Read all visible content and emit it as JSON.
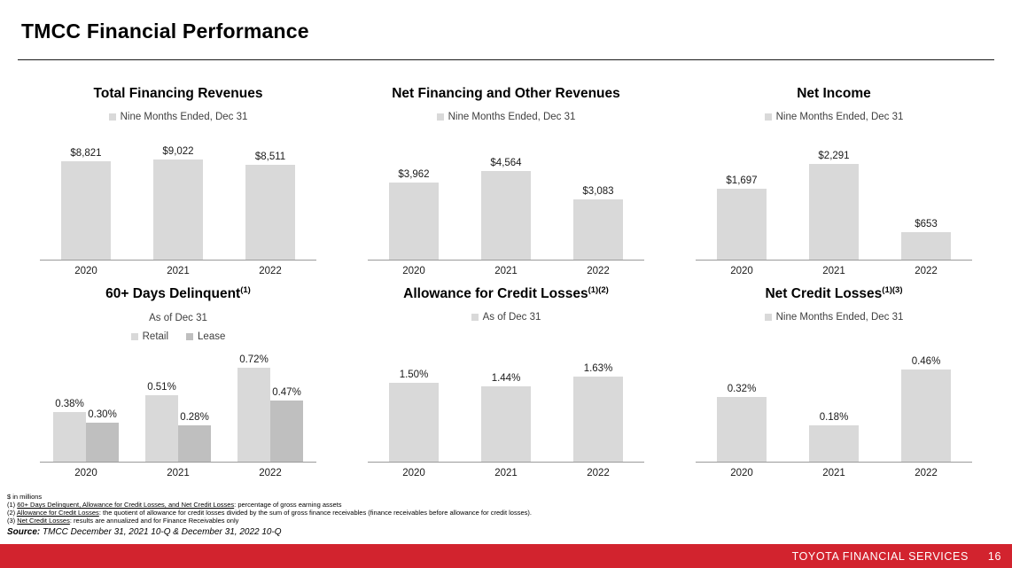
{
  "page": {
    "title": "TMCC Financial Performance",
    "footer_brand": "TOYOTA FINANCIAL SERVICES",
    "page_number": "16",
    "accent_red": "#D2232E",
    "bar_light_gray": "#D9D9D9",
    "bar_dark_gray": "#BFBFBF"
  },
  "footnotes": {
    "units": "$ in millions",
    "note1": {
      "prefix": "(1) ",
      "term": "60+ Days Delinquent, Allowance for Credit Losses, and Net Credit Losses",
      "rest": ": percentage of gross earning assets"
    },
    "note2": {
      "prefix": "(2) ",
      "term": "Allowance for Credit Losses",
      "rest": ": the quotient of allowance for credit losses divided by the sum of gross finance receivables (finance receivables before allowance for credit losses)."
    },
    "note3": {
      "prefix": "(3) ",
      "term": "Net Credit Losses",
      "rest": ": results are annualized and for Finance Receivables only"
    },
    "source_label": "Source:",
    "source_text": " TMCC December 31, 2021 10-Q & December 31, 2022 10-Q"
  },
  "chart_data": [
    {
      "type": "bar",
      "title": "Total Financing Revenues",
      "title_sup": "",
      "subtitle": "",
      "legend": [
        {
          "label": "Nine Months Ended, Dec 31",
          "color": "#D9D9D9"
        }
      ],
      "legend_position": "top",
      "grid": false,
      "categories": [
        "2020",
        "2021",
        "2022"
      ],
      "series": [
        {
          "name": "Nine Months Ended, Dec 31",
          "color": "#D9D9D9",
          "values": [
            8821,
            9022,
            8511
          ],
          "labels": [
            "$8,821",
            "$9,022",
            "$8,511"
          ]
        }
      ],
      "xlabel": "",
      "ylabel": "",
      "ylim": [
        0,
        10500
      ]
    },
    {
      "type": "bar",
      "title": "Net  Financing and Other Revenues",
      "title_sup": "",
      "subtitle": "",
      "legend": [
        {
          "label": "Nine Months Ended, Dec 31",
          "color": "#D9D9D9"
        }
      ],
      "legend_position": "top",
      "grid": false,
      "categories": [
        "2020",
        "2021",
        "2022"
      ],
      "series": [
        {
          "name": "Nine Months Ended, Dec 31",
          "color": "#D9D9D9",
          "values": [
            3962,
            4564,
            3083
          ],
          "labels": [
            "$3,962",
            "$4,564",
            "$3,083"
          ]
        }
      ],
      "xlabel": "",
      "ylabel": "",
      "ylim": [
        0,
        6000
      ]
    },
    {
      "type": "bar",
      "title": "Net Income",
      "title_sup": "",
      "subtitle": "",
      "legend": [
        {
          "label": "Nine Months Ended, Dec 31",
          "color": "#D9D9D9"
        }
      ],
      "legend_position": "top",
      "grid": false,
      "categories": [
        "2020",
        "2021",
        "2022"
      ],
      "series": [
        {
          "name": "Nine Months Ended, Dec 31",
          "color": "#D9D9D9",
          "values": [
            1697,
            2291,
            653
          ],
          "labels": [
            "$1,697",
            "$2,291",
            "$653"
          ]
        }
      ],
      "xlabel": "",
      "ylabel": "",
      "ylim": [
        0,
        2800
      ]
    },
    {
      "type": "bar",
      "title": "60+ Days Delinquent",
      "title_sup": "(1)",
      "subtitle": "As of Dec 31",
      "legend": [
        {
          "label": "Retail",
          "color": "#D9D9D9"
        },
        {
          "label": "Lease",
          "color": "#BFBFBF"
        }
      ],
      "legend_position": "top",
      "grid": false,
      "categories": [
        "2020",
        "2021",
        "2022"
      ],
      "series": [
        {
          "name": "Retail",
          "color": "#D9D9D9",
          "values": [
            0.38,
            0.51,
            0.72
          ],
          "labels": [
            "0.38%",
            "0.51%",
            "0.72%"
          ]
        },
        {
          "name": "Lease",
          "color": "#BFBFBF",
          "values": [
            0.3,
            0.28,
            0.47
          ],
          "labels": [
            "0.30%",
            "0.28%",
            "0.47%"
          ]
        }
      ],
      "xlabel": "",
      "ylabel": "",
      "ylim": [
        0,
        0.8
      ]
    },
    {
      "type": "bar",
      "title": "Allowance for Credit Losses",
      "title_sup": "(1)(2)",
      "subtitle": "",
      "legend": [
        {
          "label": "As of Dec 31",
          "color": "#D9D9D9"
        }
      ],
      "legend_position": "top",
      "grid": false,
      "categories": [
        "2020",
        "2021",
        "2022"
      ],
      "series": [
        {
          "name": "As of Dec 31",
          "color": "#D9D9D9",
          "values": [
            1.5,
            1.44,
            1.63
          ],
          "labels": [
            "1.50%",
            "1.44%",
            "1.63%"
          ]
        }
      ],
      "xlabel": "",
      "ylabel": "",
      "ylim": [
        0,
        2.0
      ]
    },
    {
      "type": "bar",
      "title": "Net Credit Losses",
      "title_sup": "(1)(3)",
      "subtitle": "",
      "legend": [
        {
          "label": "Nine Months Ended, Dec 31",
          "color": "#D9D9D9"
        }
      ],
      "legend_position": "top",
      "grid": false,
      "categories": [
        "2020",
        "2021",
        "2022"
      ],
      "series": [
        {
          "name": "Nine Months Ended, Dec 31",
          "color": "#D9D9D9",
          "values": [
            0.32,
            0.18,
            0.46
          ],
          "labels": [
            "0.32%",
            "0.18%",
            "0.46%"
          ]
        }
      ],
      "xlabel": "",
      "ylabel": "",
      "ylim": [
        0,
        0.52
      ]
    }
  ]
}
